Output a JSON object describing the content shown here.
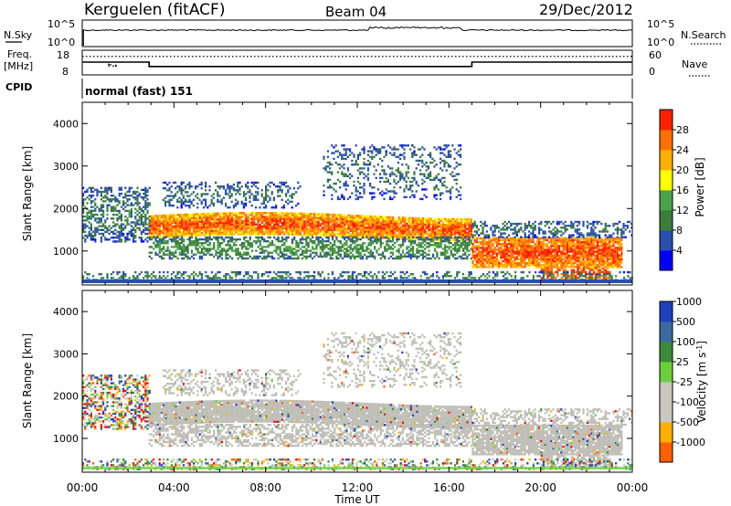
{
  "header": {
    "station": "Kerguelen (fitACF)",
    "beam": "Beam 04",
    "date": "29/Dec/2012"
  },
  "top_panels": {
    "nsky_label": "N.Sky",
    "nsky_ticks": [
      "10^5",
      "10^0"
    ],
    "nsearch_label": "N.Search",
    "freq_label_1": "Freq.",
    "freq_label_2": "[MHz]",
    "freq_ticks": [
      "18",
      "8"
    ],
    "nave_ticks": [
      "60",
      "0"
    ],
    "nave_label": "Nave",
    "cpid_label": "CPID",
    "cpid_value": "normal (fast) 151"
  },
  "colors": {
    "power_scale": [
      "#0000ff",
      "#2a4fb0",
      "#3b7d3a",
      "#4aa24a",
      "#ffff00",
      "#ffb000",
      "#ff7000",
      "#ff2000",
      "#ff0000"
    ],
    "velocity_scale": [
      "#2040c0",
      "#3a6aa0",
      "#3d8a3a",
      "#6bcf3a",
      "#c8c8c0",
      "#c8c8c0",
      "#ffb000",
      "#ff6000",
      "#ff0000"
    ],
    "ground_scatter": "#bebeb6"
  },
  "chart_data": [
    {
      "type": "line",
      "title": "Kerguelen (fitACF)",
      "subtitle": "Beam 04 — 29/Dec/2012",
      "panel": "N.Sky / N.Search",
      "ylabels": [
        "N.Sky",
        "N.Search"
      ]
    },
    {
      "type": "line",
      "panel": "Freq. / Nave",
      "ylabel_left": "Freq. [MHz]",
      "ylabel_right": "Nave",
      "ylim_left": [
        8,
        18
      ],
      "ylim_right": [
        0,
        60
      ],
      "series": [
        {
          "name": "Freq. [MHz]",
          "x": [
            "00:00",
            "02:55",
            "02:55",
            "17:00",
            "17:00",
            "24:00"
          ],
          "values": [
            13.2,
            13.2,
            11.4,
            11.4,
            13.2,
            13.2
          ]
        },
        {
          "name": "Nave",
          "x": [
            "00:00",
            "24:00"
          ],
          "values": [
            45,
            45
          ]
        }
      ]
    },
    {
      "type": "heatmap",
      "panel": "Power",
      "xlabel": "Time UT",
      "ylabel": "Slant Range [km]",
      "colorbar_label": "Power [dB]",
      "colorbar_ticks": [
        "4",
        "8",
        "12",
        "16",
        "20",
        "24",
        "28"
      ],
      "x_ticks": [
        "00:00",
        "04:00",
        "08:00",
        "12:00",
        "16:00",
        "20:00",
        "00:00"
      ],
      "y_ticks": [
        "1000",
        "2000",
        "3000",
        "4000"
      ],
      "ylim": [
        200,
        4500
      ],
      "grid": false
    },
    {
      "type": "heatmap",
      "panel": "Velocity",
      "xlabel": "Time UT",
      "ylabel": "Slant Range [km]",
      "colorbar_label": "Velocity [m s",
      "colorbar_label_sup": "-1",
      "colorbar_label_end": "]",
      "colorbar_ticks": [
        "1000",
        "500",
        "100",
        "25",
        "-25",
        "-100",
        "-500",
        "-1000"
      ],
      "x_ticks": [
        "00:00",
        "04:00",
        "08:00",
        "12:00",
        "16:00",
        "20:00",
        "00:00"
      ],
      "y_ticks": [
        "1000",
        "2000",
        "3000",
        "4000"
      ],
      "ylim": [
        200,
        4500
      ],
      "grid": false
    }
  ]
}
